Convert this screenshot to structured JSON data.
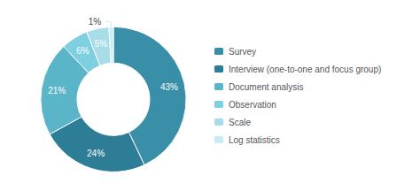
{
  "chart_data": {
    "type": "pie",
    "categories": [
      "Survey",
      "Interview (one-to-one and focus group)",
      "Document analysis",
      "Observation",
      "Scale",
      "Log statistics"
    ],
    "values": [
      43,
      24,
      21,
      6,
      5,
      1
    ],
    "value_labels": [
      "43%",
      "24%",
      "21%",
      "6%",
      "5%",
      "1%"
    ],
    "colors": [
      "#3A8FA8",
      "#2E7D96",
      "#5BB5C8",
      "#7ECFDF",
      "#A8DDE8",
      "#C8EDF5"
    ],
    "data_labels": true,
    "legend": "right"
  }
}
